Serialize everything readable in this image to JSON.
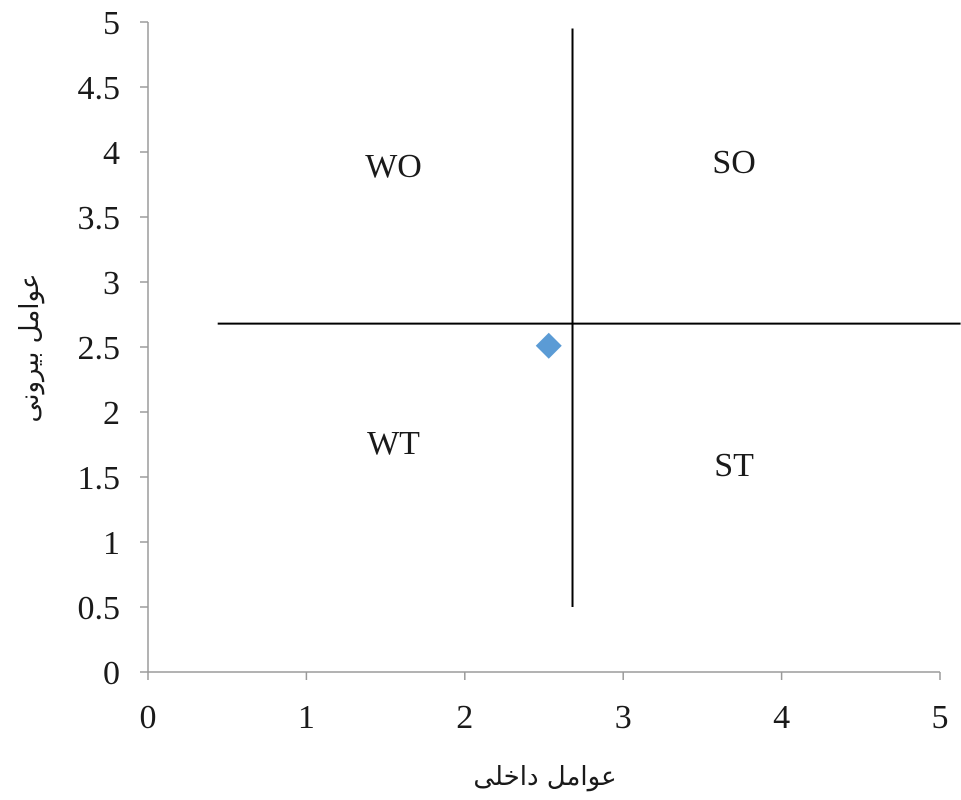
{
  "chart_data": {
    "type": "scatter",
    "title": "",
    "xlabel": "عوامل داخلی",
    "ylabel": "عوامل بیرونی",
    "xlim": [
      0,
      5
    ],
    "ylim": [
      0,
      5
    ],
    "x_ticks": [
      "0",
      "1",
      "2",
      "3",
      "4",
      "5"
    ],
    "y_ticks": [
      "0",
      "0.5",
      "1",
      "1.5",
      "2",
      "2.5",
      "3",
      "3.5",
      "4",
      "4.5",
      "5"
    ],
    "grid": false,
    "legend": "none",
    "points": [
      {
        "x": 2.53,
        "y": 2.51
      }
    ],
    "point_color": "#5b9bd5",
    "marker": "diamond",
    "divider_lines": {
      "vertical": {
        "x": 2.68,
        "y_from": 0.5,
        "y_to": 4.95
      },
      "horizontal": {
        "y": 2.68,
        "x_from": 0.44,
        "x_to": 5.13
      }
    },
    "quadrant_labels": [
      {
        "text": "WO",
        "x": 1.55,
        "y": 3.9
      },
      {
        "text": "SO",
        "x": 3.7,
        "y": 3.93
      },
      {
        "text": "WT",
        "x": 1.55,
        "y": 1.77
      },
      {
        "text": "ST",
        "x": 3.7,
        "y": 1.6
      }
    ]
  }
}
